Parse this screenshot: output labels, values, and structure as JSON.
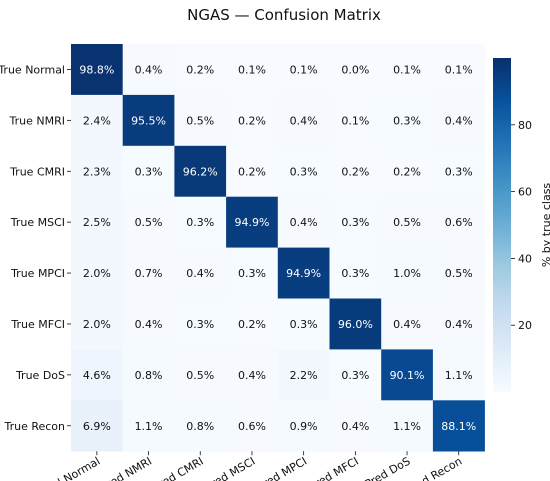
{
  "chart_data": {
    "type": "heatmap",
    "title": "NGAS — Confusion Matrix",
    "rows": [
      "True Normal",
      "True NMRI",
      "True CMRI",
      "True MSCI",
      "True MPCI",
      "True MFCI",
      "True DoS",
      "True Recon"
    ],
    "cols": [
      "Pred Normal",
      "Pred NMRI",
      "Pred CMRI",
      "Pred MSCI",
      "Pred MPCI",
      "Pred MFCI",
      "Pred DoS",
      "Pred Recon"
    ],
    "values": [
      [
        98.8,
        0.4,
        0.2,
        0.1,
        0.1,
        0.0,
        0.1,
        0.1
      ],
      [
        2.4,
        95.5,
        0.5,
        0.2,
        0.4,
        0.1,
        0.3,
        0.4
      ],
      [
        2.3,
        0.3,
        96.2,
        0.2,
        0.3,
        0.2,
        0.2,
        0.3
      ],
      [
        2.5,
        0.5,
        0.3,
        94.9,
        0.4,
        0.3,
        0.5,
        0.6
      ],
      [
        2.0,
        0.7,
        0.4,
        0.3,
        94.9,
        0.3,
        1.0,
        0.5
      ],
      [
        2.0,
        0.4,
        0.3,
        0.2,
        0.3,
        96.0,
        0.4,
        0.4
      ],
      [
        4.6,
        0.8,
        0.5,
        0.4,
        2.2,
        0.3,
        90.1,
        1.1
      ],
      [
        6.9,
        1.1,
        0.8,
        0.6,
        0.9,
        0.4,
        1.1,
        88.1
      ]
    ],
    "value_suffix": "%",
    "colorbar": {
      "label": "% by true class",
      "ticks": [
        20,
        40,
        60,
        80
      ],
      "range": [
        0,
        100
      ],
      "cmap": "Blues",
      "low_color": "#f7fbff",
      "high_color": "#08306b"
    }
  }
}
